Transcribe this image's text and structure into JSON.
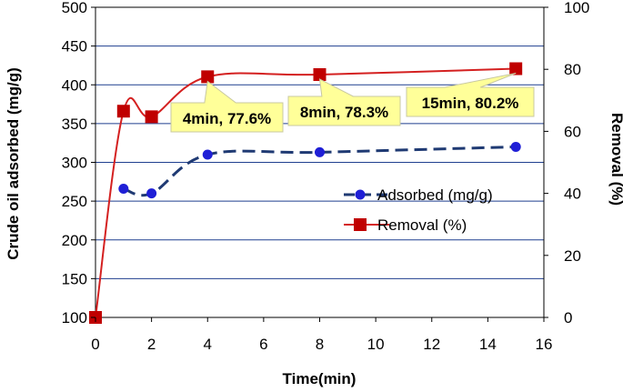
{
  "chart_data": {
    "type": "line",
    "xlabel": "Time(min)",
    "ylabel_left": "Crude oil adsorbed (mg/g)",
    "ylabel_right": "Removal (%)",
    "x_ticks": [
      "0",
      "2",
      "4",
      "6",
      "8",
      "10",
      "12",
      "14",
      "16"
    ],
    "y_left_ticks": [
      "100",
      "150",
      "200",
      "250",
      "300",
      "350",
      "400",
      "450",
      "500"
    ],
    "y_right_ticks": [
      "0",
      "20",
      "40",
      "60",
      "80",
      "100"
    ],
    "xlim": [
      0,
      16
    ],
    "ylim_left": [
      100,
      500
    ],
    "ylim_right": [
      0,
      100
    ],
    "grid": true,
    "legend_position": "right-middle",
    "series": [
      {
        "name": "Adsorbed (mg/g)",
        "axis": "left",
        "color": "#1f3a73",
        "marker_color": "#1f1fd6",
        "line_style": "dashed",
        "marker": "circle",
        "x": [
          1,
          2,
          4,
          8,
          15
        ],
        "y": [
          266,
          260,
          310,
          313,
          320
        ]
      },
      {
        "name": "Removal (%)",
        "axis": "right",
        "color": "#d42020",
        "marker_color": "#c00000",
        "line_style": "solid",
        "marker": "square",
        "x": [
          0,
          1,
          2,
          4,
          8,
          15
        ],
        "y": [
          0,
          66.5,
          64.7,
          77.6,
          78.3,
          80.2
        ]
      }
    ],
    "annotations": [
      {
        "text": "4min, 77.6%",
        "x": 4,
        "y": 77.6
      },
      {
        "text": "8min, 78.3%",
        "x": 8,
        "y": 78.3
      },
      {
        "text": "15min, 80.2%",
        "x": 15,
        "y": 80.2
      }
    ],
    "callout_color": "#ffff99"
  }
}
